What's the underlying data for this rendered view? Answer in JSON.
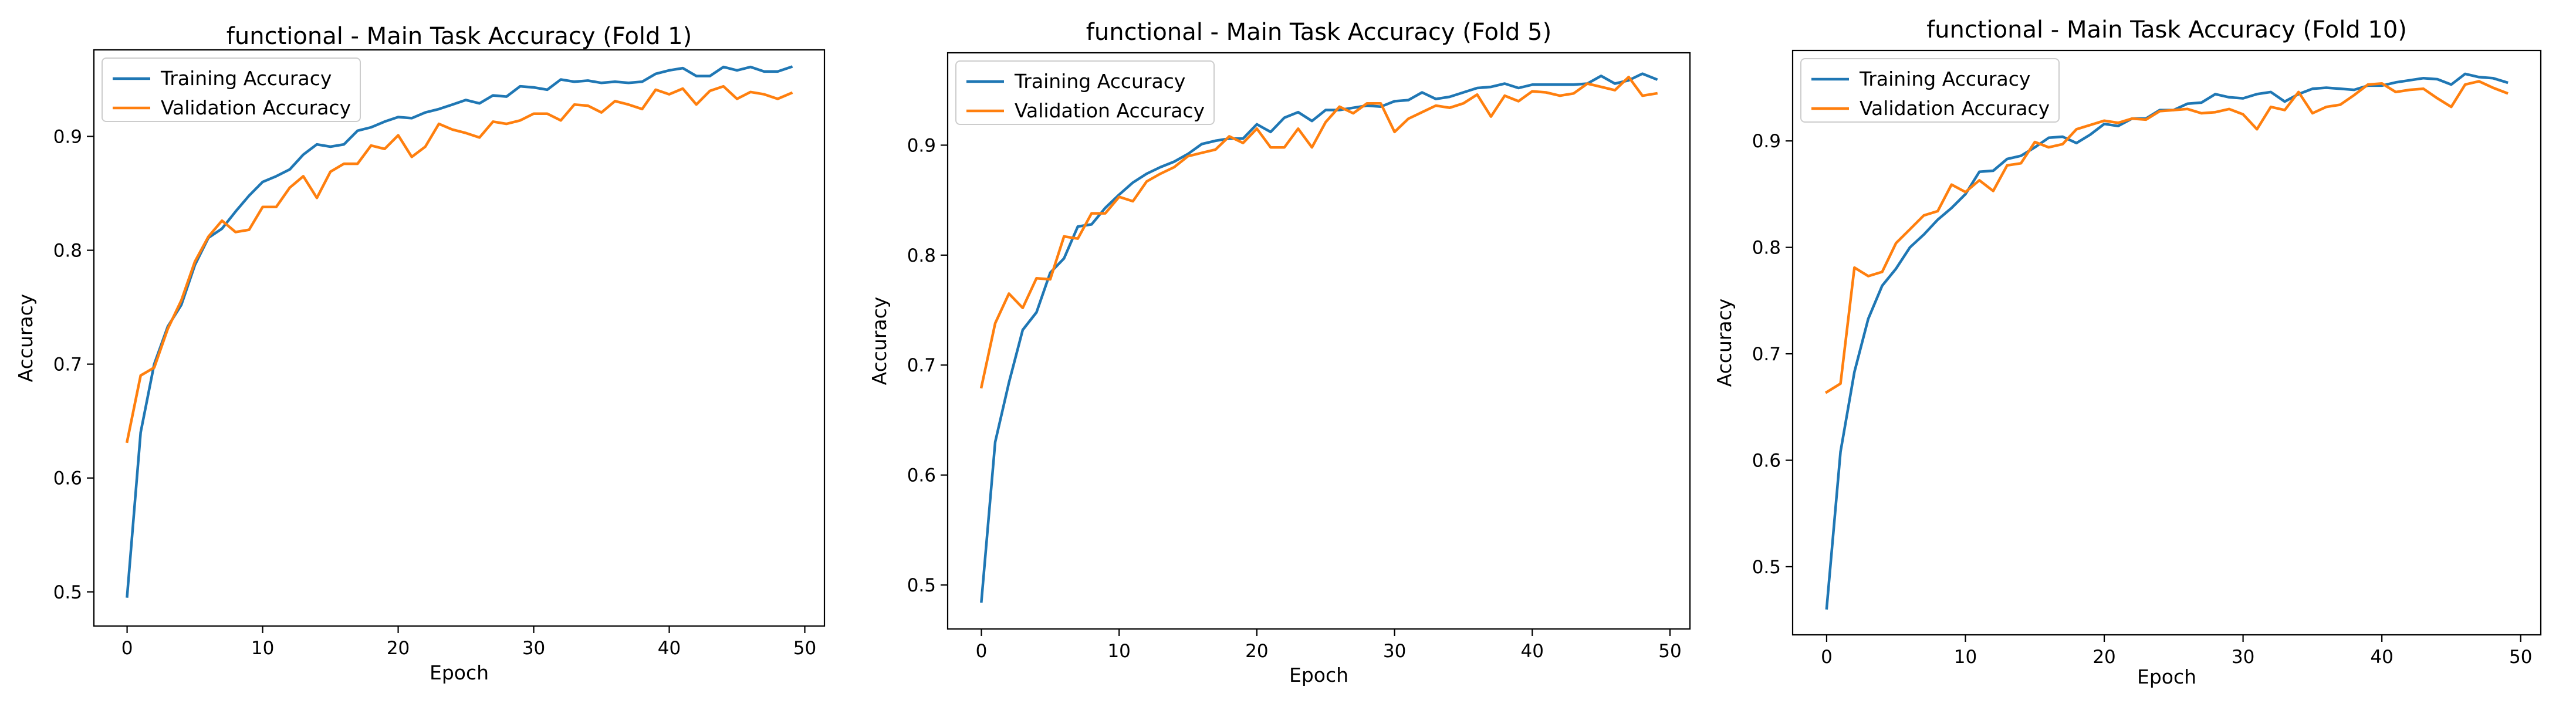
{
  "colors": {
    "training": "#1f77b4",
    "validation": "#ff7f0e"
  },
  "chart_data": [
    {
      "type": "line",
      "title": "functional - Main Task Accuracy (Fold 1)",
      "xlabel": "Epoch",
      "ylabel": "Accuracy",
      "xlim": [
        -2.45,
        51.45
      ],
      "ylim": [
        0.47,
        0.976
      ],
      "xticks": [
        0,
        10,
        20,
        30,
        40,
        50
      ],
      "yticks": [
        0.5,
        0.6,
        0.7,
        0.8,
        0.9
      ],
      "ytick_labels": [
        "0.5",
        "0.6",
        "0.7",
        "0.8",
        "0.9"
      ],
      "legend_placement": "upper left",
      "grid": false,
      "x": [
        0,
        1,
        2,
        3,
        4,
        5,
        6,
        7,
        8,
        9,
        10,
        11,
        12,
        13,
        14,
        15,
        16,
        17,
        18,
        19,
        20,
        21,
        22,
        23,
        24,
        25,
        26,
        27,
        28,
        29,
        30,
        31,
        32,
        33,
        34,
        35,
        36,
        37,
        38,
        39,
        40,
        41,
        42,
        43,
        44,
        45,
        46,
        47,
        48,
        49
      ],
      "series": [
        {
          "name": "Training Accuracy",
          "color": "#1f77b4",
          "values": [
            0.496,
            0.64,
            0.7,
            0.733,
            0.752,
            0.787,
            0.811,
            0.819,
            0.834,
            0.848,
            0.86,
            0.865,
            0.871,
            0.884,
            0.893,
            0.891,
            0.893,
            0.905,
            0.908,
            0.913,
            0.917,
            0.916,
            0.921,
            0.924,
            0.928,
            0.932,
            0.929,
            0.936,
            0.935,
            0.944,
            0.943,
            0.941,
            0.95,
            0.948,
            0.949,
            0.947,
            0.948,
            0.947,
            0.948,
            0.955,
            0.958,
            0.96,
            0.953,
            0.953,
            0.961,
            0.958,
            0.961,
            0.957,
            0.957,
            0.961
          ]
        },
        {
          "name": "Validation Accuracy",
          "color": "#ff7f0e",
          "values": [
            0.632,
            0.69,
            0.697,
            0.731,
            0.756,
            0.79,
            0.812,
            0.826,
            0.816,
            0.818,
            0.838,
            0.838,
            0.855,
            0.865,
            0.846,
            0.869,
            0.876,
            0.876,
            0.892,
            0.889,
            0.901,
            0.882,
            0.891,
            0.911,
            0.906,
            0.903,
            0.899,
            0.913,
            0.911,
            0.914,
            0.92,
            0.92,
            0.914,
            0.928,
            0.927,
            0.921,
            0.931,
            0.928,
            0.924,
            0.941,
            0.937,
            0.942,
            0.928,
            0.94,
            0.944,
            0.933,
            0.939,
            0.937,
            0.933,
            0.938
          ]
        }
      ]
    },
    {
      "type": "line",
      "title": "functional - Main Task Accuracy (Fold 5)",
      "xlabel": "Epoch",
      "ylabel": "Accuracy",
      "xlim": [
        -2.45,
        51.45
      ],
      "ylim": [
        0.46,
        0.984
      ],
      "xticks": [
        0,
        10,
        20,
        30,
        40,
        50
      ],
      "yticks": [
        0.5,
        0.6,
        0.7,
        0.8,
        0.9
      ],
      "ytick_labels": [
        "0.5",
        "0.6",
        "0.7",
        "0.8",
        "0.9"
      ],
      "legend_placement": "upper left",
      "grid": false,
      "x": [
        0,
        1,
        2,
        3,
        4,
        5,
        6,
        7,
        8,
        9,
        10,
        11,
        12,
        13,
        14,
        15,
        16,
        17,
        18,
        19,
        20,
        21,
        22,
        23,
        24,
        25,
        26,
        27,
        28,
        29,
        30,
        31,
        32,
        33,
        34,
        35,
        36,
        37,
        38,
        39,
        40,
        41,
        42,
        43,
        44,
        45,
        46,
        47,
        48,
        49
      ],
      "series": [
        {
          "name": "Training Accuracy",
          "color": "#1f77b4",
          "values": [
            0.485,
            0.63,
            0.684,
            0.732,
            0.748,
            0.784,
            0.797,
            0.826,
            0.828,
            0.843,
            0.855,
            0.866,
            0.874,
            0.88,
            0.885,
            0.892,
            0.901,
            0.904,
            0.906,
            0.906,
            0.919,
            0.912,
            0.925,
            0.93,
            0.922,
            0.932,
            0.932,
            0.934,
            0.936,
            0.935,
            0.94,
            0.941,
            0.948,
            0.942,
            0.944,
            0.948,
            0.952,
            0.953,
            0.956,
            0.952,
            0.955,
            0.955,
            0.955,
            0.955,
            0.956,
            0.963,
            0.956,
            0.959,
            0.965,
            0.96
          ]
        },
        {
          "name": "Validation Accuracy",
          "color": "#ff7f0e",
          "values": [
            0.68,
            0.738,
            0.765,
            0.752,
            0.779,
            0.778,
            0.817,
            0.815,
            0.838,
            0.838,
            0.853,
            0.849,
            0.867,
            0.874,
            0.88,
            0.89,
            0.893,
            0.896,
            0.908,
            0.902,
            0.915,
            0.898,
            0.898,
            0.915,
            0.898,
            0.921,
            0.935,
            0.929,
            0.938,
            0.938,
            0.912,
            0.924,
            0.93,
            0.936,
            0.934,
            0.938,
            0.946,
            0.926,
            0.945,
            0.94,
            0.949,
            0.948,
            0.945,
            0.947,
            0.956,
            0.953,
            0.95,
            0.962,
            0.945,
            0.947
          ]
        }
      ]
    },
    {
      "type": "line",
      "title": "functional - Main Task Accuracy (Fold 10)",
      "xlabel": "Epoch",
      "ylabel": "Accuracy",
      "xlim": [
        -2.45,
        51.45
      ],
      "ylim": [
        0.436,
        0.985
      ],
      "xticks": [
        0,
        10,
        20,
        30,
        40,
        50
      ],
      "yticks": [
        0.5,
        0.6,
        0.7,
        0.8,
        0.9
      ],
      "ytick_labels": [
        "0.5",
        "0.6",
        "0.7",
        "0.8",
        "0.9"
      ],
      "legend_placement": "upper left",
      "grid": false,
      "x": [
        0,
        1,
        2,
        3,
        4,
        5,
        6,
        7,
        8,
        9,
        10,
        11,
        12,
        13,
        14,
        15,
        16,
        17,
        18,
        19,
        20,
        21,
        22,
        23,
        24,
        25,
        26,
        27,
        28,
        29,
        30,
        31,
        32,
        33,
        34,
        35,
        36,
        37,
        38,
        39,
        40,
        41,
        42,
        43,
        44,
        45,
        46,
        47,
        48,
        49
      ],
      "series": [
        {
          "name": "Training Accuracy",
          "color": "#1f77b4",
          "values": [
            0.461,
            0.608,
            0.683,
            0.733,
            0.764,
            0.78,
            0.8,
            0.812,
            0.826,
            0.837,
            0.85,
            0.871,
            0.872,
            0.883,
            0.886,
            0.894,
            0.903,
            0.904,
            0.898,
            0.906,
            0.916,
            0.914,
            0.921,
            0.921,
            0.929,
            0.929,
            0.935,
            0.936,
            0.944,
            0.941,
            0.94,
            0.944,
            0.946,
            0.937,
            0.944,
            0.949,
            0.95,
            0.949,
            0.948,
            0.952,
            0.952,
            0.955,
            0.957,
            0.959,
            0.958,
            0.953,
            0.963,
            0.96,
            0.959,
            0.955
          ]
        },
        {
          "name": "Validation Accuracy",
          "color": "#ff7f0e",
          "values": [
            0.664,
            0.672,
            0.781,
            0.773,
            0.777,
            0.804,
            0.817,
            0.83,
            0.834,
            0.859,
            0.852,
            0.863,
            0.853,
            0.877,
            0.879,
            0.899,
            0.894,
            0.897,
            0.911,
            0.915,
            0.919,
            0.917,
            0.921,
            0.92,
            0.928,
            0.929,
            0.93,
            0.926,
            0.927,
            0.93,
            0.925,
            0.911,
            0.932,
            0.929,
            0.946,
            0.926,
            0.932,
            0.934,
            0.943,
            0.953,
            0.954,
            0.946,
            0.948,
            0.949,
            0.94,
            0.932,
            0.953,
            0.956,
            0.95,
            0.945
          ]
        }
      ]
    }
  ]
}
